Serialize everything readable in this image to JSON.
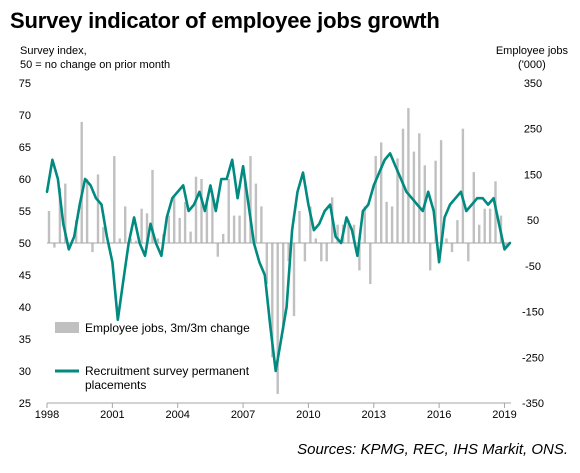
{
  "title": "Survey indicator of employee jobs growth",
  "source": "Sources: KPMG, REC, IHS Markit, ONS.",
  "colors": {
    "bars": "#c0c0c0",
    "line": "#008a80",
    "axis": "#a6a6a6",
    "text": "#000000"
  },
  "chart_data": {
    "type": "bar+line",
    "title": "Survey indicator of employee jobs growth",
    "ylabel_left": [
      "Survey index,",
      "50 = no change on prior month"
    ],
    "ylabel_right": [
      "Employee jobs",
      "('000)"
    ],
    "xlim": [
      1998,
      2019.3
    ],
    "ylim_left": [
      25,
      75
    ],
    "ylim_right": [
      -350,
      350
    ],
    "yticks_left": [
      "75",
      "70",
      "65",
      "60",
      "55",
      "50",
      "45",
      "40",
      "35",
      "30",
      "25"
    ],
    "yticks_right": [
      "350",
      "250",
      "150",
      "50",
      "-50",
      "-150",
      "-250",
      "-350"
    ],
    "xticks": [
      "1998",
      "2001",
      "2004",
      "2007",
      "2010",
      "2013",
      "2016",
      "2019"
    ],
    "grid": false,
    "legend": "lower-left",
    "series": [
      {
        "name": "Employee jobs, 3m/3m change",
        "type": "bar",
        "axis": "right",
        "x": [
          1998.0,
          1998.25,
          1998.5,
          1998.75,
          1999.0,
          1999.25,
          1999.5,
          1999.75,
          2000.0,
          2000.25,
          2000.5,
          2000.75,
          2001.0,
          2001.25,
          2001.5,
          2001.75,
          2002.0,
          2002.25,
          2002.5,
          2002.75,
          2003.0,
          2003.25,
          2003.5,
          2003.75,
          2004.0,
          2004.25,
          2004.5,
          2004.75,
          2005.0,
          2005.25,
          2005.5,
          2005.75,
          2006.0,
          2006.25,
          2006.5,
          2006.75,
          2007.0,
          2007.25,
          2007.5,
          2007.75,
          2008.0,
          2008.25,
          2008.5,
          2008.75,
          2009.0,
          2009.25,
          2009.5,
          2009.75,
          2010.0,
          2010.25,
          2010.5,
          2010.75,
          2011.0,
          2011.25,
          2011.5,
          2011.75,
          2012.0,
          2012.25,
          2012.5,
          2012.75,
          2013.0,
          2013.25,
          2013.5,
          2013.75,
          2014.0,
          2014.25,
          2014.5,
          2014.75,
          2015.0,
          2015.25,
          2015.5,
          2015.75,
          2016.0,
          2016.25,
          2016.5,
          2016.75,
          2017.0,
          2017.25,
          2017.5,
          2017.75,
          2018.0,
          2018.25,
          2018.5,
          2018.75,
          2019.0
        ],
        "values": [
          70,
          -10,
          120,
          130,
          -5,
          50,
          265,
          140,
          -20,
          150,
          35,
          -10,
          190,
          10,
          80,
          10,
          5,
          75,
          65,
          160,
          10,
          20,
          60,
          100,
          55,
          90,
          25,
          145,
          140,
          90,
          110,
          -30,
          20,
          140,
          60,
          60,
          135,
          190,
          130,
          80,
          -90,
          -250,
          -330,
          -190,
          -40,
          -160,
          70,
          -40,
          80,
          10,
          -40,
          -40,
          100,
          40,
          40,
          50,
          40,
          -60,
          80,
          -90,
          190,
          220,
          90,
          80,
          185,
          250,
          295,
          200,
          240,
          170,
          -60,
          180,
          225,
          10,
          -20,
          50,
          250,
          -40,
          155,
          40,
          75,
          75,
          135,
          60,
          -10
        ]
      },
      {
        "name": "Recruitment survey permanent placements",
        "type": "line",
        "axis": "left",
        "x": [
          1998.0,
          1998.25,
          1998.5,
          1998.75,
          1999.0,
          1999.25,
          1999.5,
          1999.75,
          2000.0,
          2000.25,
          2000.5,
          2000.75,
          2001.0,
          2001.25,
          2001.5,
          2001.75,
          2002.0,
          2002.25,
          2002.5,
          2002.75,
          2003.0,
          2003.25,
          2003.5,
          2003.75,
          2004.0,
          2004.25,
          2004.5,
          2004.75,
          2005.0,
          2005.25,
          2005.5,
          2005.75,
          2006.0,
          2006.25,
          2006.5,
          2006.75,
          2007.0,
          2007.25,
          2007.5,
          2007.75,
          2008.0,
          2008.25,
          2008.5,
          2008.75,
          2009.0,
          2009.25,
          2009.5,
          2009.75,
          2010.0,
          2010.25,
          2010.5,
          2010.75,
          2011.0,
          2011.25,
          2011.5,
          2011.75,
          2012.0,
          2012.25,
          2012.5,
          2012.75,
          2013.0,
          2013.25,
          2013.5,
          2013.75,
          2014.0,
          2014.25,
          2014.5,
          2014.75,
          2015.0,
          2015.25,
          2015.5,
          2015.75,
          2016.0,
          2016.25,
          2016.5,
          2016.75,
          2017.0,
          2017.25,
          2017.5,
          2017.75,
          2018.0,
          2018.25,
          2018.5,
          2018.75,
          2019.0,
          2019.25
        ],
        "values": [
          58,
          63,
          60,
          53,
          49,
          51,
          56,
          60,
          59,
          57,
          56,
          51,
          47,
          38,
          44,
          50,
          54,
          50,
          48,
          53,
          50,
          48,
          54,
          57,
          58,
          59,
          55,
          56,
          58,
          55,
          59,
          55,
          60,
          60,
          63,
          57,
          62,
          56,
          50,
          47,
          45,
          37,
          30,
          35,
          40,
          52,
          58,
          61,
          56,
          52,
          53,
          55,
          56,
          51,
          50,
          54,
          52,
          48,
          55,
          56,
          59,
          61,
          63,
          64,
          62,
          60,
          58,
          57,
          56,
          55,
          58,
          55,
          47,
          54,
          56,
          57,
          58,
          55,
          56,
          57,
          57,
          56,
          57,
          53,
          49,
          50
        ]
      }
    ]
  }
}
